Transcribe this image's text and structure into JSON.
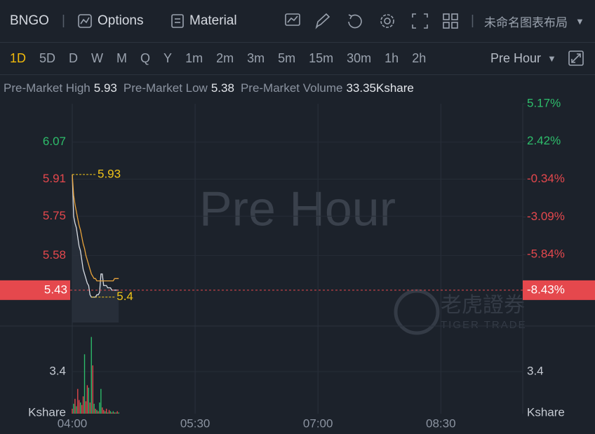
{
  "toolbar": {
    "symbol": "BNGO",
    "options": "Options",
    "material": "Material",
    "layout": "未命名图表布局"
  },
  "periods": [
    "1D",
    "5D",
    "D",
    "W",
    "M",
    "Q",
    "Y",
    "1m",
    "2m",
    "3m",
    "5m",
    "15m",
    "30m",
    "1h",
    "2h"
  ],
  "active_period": 0,
  "session": "Pre Hour",
  "stats": [
    {
      "label": "Pre-Market High",
      "value": 5.93
    },
    {
      "label": "Pre-Market Low",
      "value": 5.38
    },
    {
      "label": "Pre-Market Volume",
      "value": "33.35Kshare"
    }
  ],
  "watermark": {
    "cn": "老虎證券",
    "en": "TIGER TRADE"
  },
  "chart_data": {
    "type": "line",
    "x": [
      240,
      241,
      242,
      243,
      244,
      245,
      246,
      247,
      248,
      249,
      250,
      251,
      252,
      253,
      254,
      255,
      256,
      257,
      258,
      259,
      260,
      261,
      262,
      263,
      264,
      265,
      266,
      267,
      268,
      269,
      270,
      271,
      272,
      273,
      274
    ],
    "series": [
      {
        "name": "Price",
        "color": "#d8dce3",
        "values": [
          5.93,
          5.75,
          5.72,
          5.7,
          5.66,
          5.62,
          5.6,
          5.56,
          5.52,
          5.5,
          5.48,
          5.46,
          5.45,
          5.41,
          5.4,
          5.4,
          5.4,
          5.4,
          5.41,
          5.41,
          5.42,
          5.5,
          5.5,
          5.45,
          5.45,
          5.45,
          5.44,
          5.44,
          5.44,
          5.43,
          5.43,
          5.43,
          5.43,
          5.43,
          5.43
        ]
      },
      {
        "name": "Average",
        "color": "#e8a33c",
        "values": [
          5.93,
          5.84,
          5.8,
          5.77,
          5.74,
          5.71,
          5.69,
          5.66,
          5.63,
          5.61,
          5.58,
          5.56,
          5.54,
          5.52,
          5.5,
          5.49,
          5.48,
          5.48,
          5.47,
          5.47,
          5.47,
          5.47,
          5.47,
          5.47,
          5.47,
          5.47,
          5.47,
          5.47,
          5.47,
          5.47,
          5.47,
          5.48,
          5.48,
          5.48,
          5.48
        ]
      }
    ],
    "volume": {
      "values": [
        0.4,
        0.8,
        1.2,
        0.6,
        2.0,
        1.1,
        0.9,
        0.7,
        1.4,
        4.8,
        1.0,
        2.3,
        2.1,
        0.9,
        6.2,
        3.9,
        0.8,
        0.4,
        0.3,
        0.2,
        0.9,
        2.0,
        0.5,
        0.3,
        0.2,
        0.4,
        0.1,
        0.3,
        0.2,
        0.1,
        0.2,
        0.1,
        0.1,
        0.2,
        0.1
      ],
      "colors": [
        "#e5484d",
        "#2ebd6b",
        "#e5484d",
        "#2ebd6b",
        "#e5484d",
        "#e5484d",
        "#2ebd6b",
        "#e5484d",
        "#e5484d",
        "#2ebd6b",
        "#e5484d",
        "#e5484d",
        "#2ebd6b",
        "#e5484d",
        "#2ebd6b",
        "#e5484d",
        "#2ebd6b",
        "#e5484d",
        "#2ebd6b",
        "#e5484d",
        "#2ebd6b",
        "#2ebd6b",
        "#e5484d",
        "#e5484d",
        "#2ebd6b",
        "#e5484d",
        "#2ebd6b",
        "#e5484d",
        "#2ebd6b",
        "#e5484d",
        "#2ebd6b",
        "#e5484d",
        "#2ebd6b",
        "#e5484d",
        "#2ebd6b"
      ],
      "ylim": [
        0,
        6.8
      ],
      "yticks": [
        3.4
      ],
      "unit": "Kshare"
    },
    "xlim": [
      240,
      570
    ],
    "xticks": [
      {
        "value": 240,
        "label": "04:00"
      },
      {
        "value": 330,
        "label": "05:30"
      },
      {
        "value": 420,
        "label": "07:00"
      },
      {
        "value": 510,
        "label": "08:30"
      }
    ],
    "ylim": [
      5.29,
      6.236
    ],
    "yticks": [
      6.07,
      5.91,
      5.75,
      5.58
    ],
    "y2lim": [
      -10.79,
      5.17
    ],
    "y2ticks": [
      {
        "value": 5.17,
        "label": "5.17%"
      },
      {
        "value": 2.42,
        "label": "2.42%"
      },
      {
        "value": -0.34,
        "label": "-0.34%"
      },
      {
        "value": -3.09,
        "label": "-3.09%"
      },
      {
        "value": -5.84,
        "label": "-5.84%"
      }
    ],
    "last_price": 5.43,
    "last_change": {
      "value": -8.43,
      "label": "-8.43%"
    },
    "annotations": [
      {
        "x": 240,
        "value": 5.93
      },
      {
        "x": 254,
        "value": 5.4
      }
    ],
    "grid": true
  }
}
